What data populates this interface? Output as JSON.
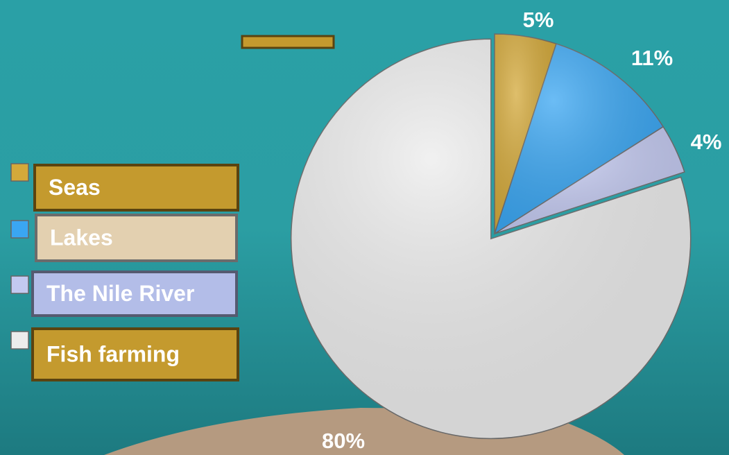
{
  "chart_data": {
    "type": "pie",
    "categories": [
      "Seas",
      "Lakes",
      "The Nile River",
      "Fish farming"
    ],
    "values": [
      5,
      11,
      4,
      80
    ],
    "value_labels": [
      "5%",
      "11%",
      "4%",
      "80%"
    ],
    "colors": [
      "#d4a93a",
      "#3aa6f2",
      "#c3c9f0",
      "#ececec"
    ],
    "legend": "left"
  }
}
